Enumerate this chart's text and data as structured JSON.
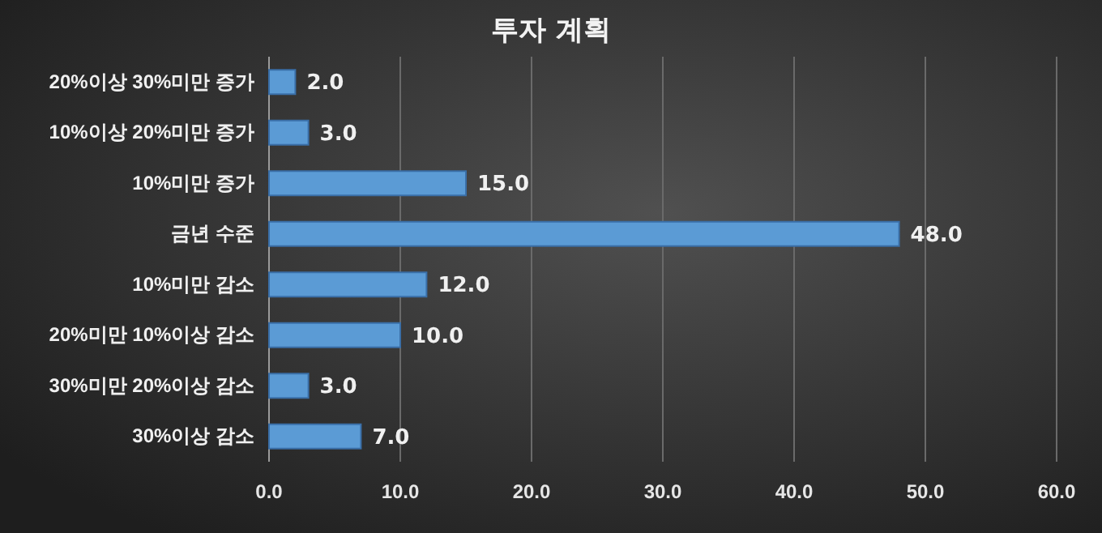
{
  "chart_data": {
    "type": "bar",
    "orientation": "horizontal",
    "title": "투자 계획",
    "categories": [
      "20%이상 30%미만 증가",
      "10%이상 20%미만 증가",
      "10%미만 증가",
      "금년 수준",
      "10%미만 감소",
      "20%미만 10%이상 감소",
      "30%미만 20%이상 감소",
      "30%이상 감소"
    ],
    "values": [
      2.0,
      3.0,
      15.0,
      48.0,
      12.0,
      10.0,
      3.0,
      7.0
    ],
    "value_labels": [
      "2.0",
      "3.0",
      "15.0",
      "48.0",
      "12.0",
      "10.0",
      "3.0",
      "7.0"
    ],
    "color": "#5b9bd5",
    "xlim": [
      0,
      60
    ],
    "xticks": [
      {
        "value": 0,
        "label": "0.0"
      },
      {
        "value": 10,
        "label": "10.0"
      },
      {
        "value": 20,
        "label": "20.0"
      },
      {
        "value": 30,
        "label": "30.0"
      },
      {
        "value": 40,
        "label": "40.0"
      },
      {
        "value": 50,
        "label": "50.0"
      },
      {
        "value": 60,
        "label": "60.0"
      }
    ],
    "grid": "x"
  }
}
